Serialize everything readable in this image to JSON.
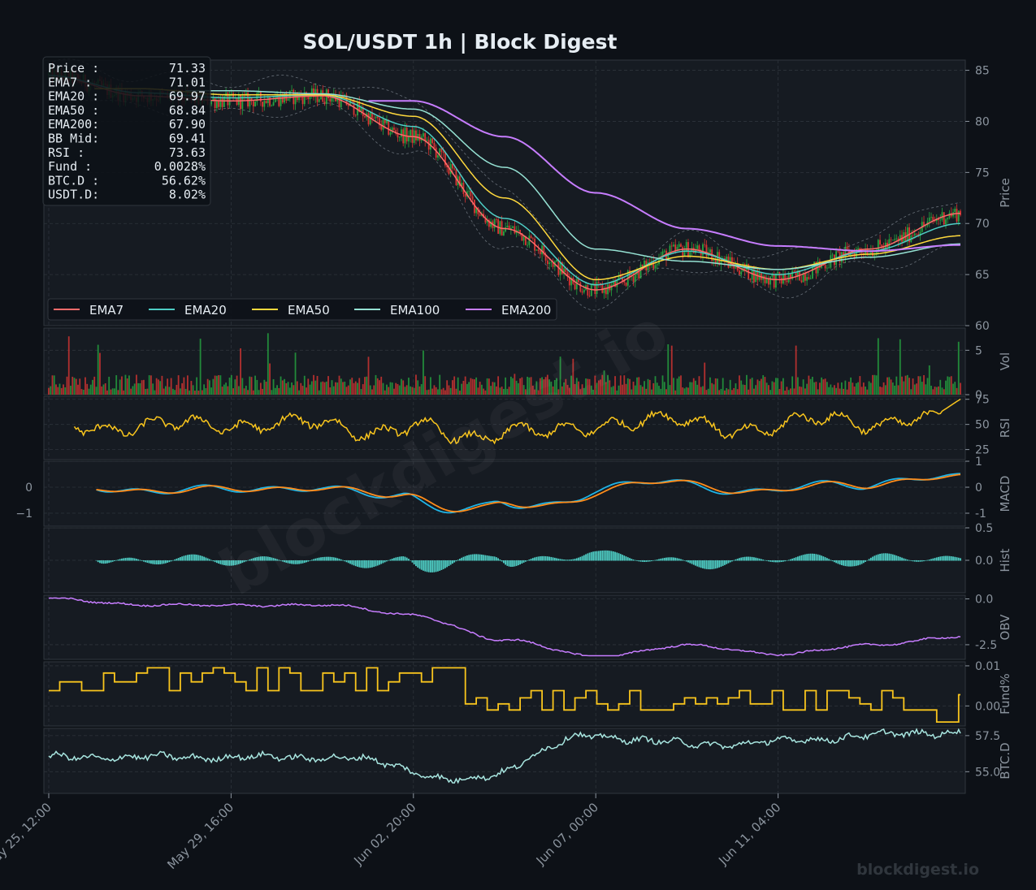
{
  "title": "SOL/USDT  1h  |  Block Digest",
  "watermark": "blockdigest.io",
  "footer_brand": "blockdigest.io",
  "colors": {
    "bg": "#0d1117",
    "panel": "#161b22",
    "grid": "#2d333b",
    "text": "#e6edf3",
    "muted": "#8b949e",
    "up": "#26a641",
    "down": "#da3633",
    "ema7": "#ff6b6b",
    "ema20": "#4ecdc4",
    "ema50": "#ffd93d",
    "ema100": "#95e1d3",
    "ema200": "#c77dff",
    "rsi": "#f9c51d",
    "macd": "#1fb4e6",
    "signal": "#ff8c1a",
    "hist": "#4ecdc4",
    "obv": "#c77dff",
    "fund": "#f9c51d",
    "btcd": "#a8e6e0"
  },
  "info_box": [
    {
      "label": "Price :",
      "value": "71.33"
    },
    {
      "label": "EMA7  :",
      "value": "71.01"
    },
    {
      "label": "EMA20 :",
      "value": "69.97"
    },
    {
      "label": "EMA50 :",
      "value": "68.84"
    },
    {
      "label": "EMA200:",
      "value": "67.90"
    },
    {
      "label": "BB Mid:",
      "value": "69.41"
    },
    {
      "label": "RSI   :",
      "value": "73.63"
    },
    {
      "label": "Fund  :",
      "value": "0.0028%"
    },
    {
      "label": "BTC.D :",
      "value": "56.62%"
    },
    {
      "label": "USDT.D:",
      "value": "8.02%"
    }
  ],
  "legend": [
    "EMA7",
    "EMA20",
    "EMA50",
    "EMA100",
    "EMA200"
  ],
  "x_axis": {
    "ticks": [
      "May 25, 12:00",
      "May 29, 16:00",
      "Jun 02, 20:00",
      "Jun 07, 00:00",
      "Jun 11, 04:00"
    ]
  },
  "chart_data": [
    {
      "type": "line",
      "panel": "price",
      "ylabel": "Price",
      "ylim": [
        60,
        86
      ],
      "yticks": [
        "60",
        "65",
        "70",
        "75",
        "80",
        "85"
      ],
      "x": [
        "May 25, 12:00",
        "May 27, 14:00",
        "May 29, 16:00",
        "May 31, 18:00",
        "Jun 02, 20:00",
        "Jun 04, 22:00",
        "Jun 07, 00:00",
        "Jun 09, 02:00",
        "Jun 11, 04:00",
        "Jun 13, 06:00",
        "Jun 15, 08:00"
      ],
      "series": [
        {
          "name": "EMA7",
          "values": [
            84.5,
            82.5,
            82.0,
            82.5,
            78.5,
            69.5,
            63.5,
            67.5,
            64.5,
            67.5,
            71.0
          ]
        },
        {
          "name": "EMA20",
          "values": [
            84.5,
            82.8,
            82.3,
            82.6,
            79.5,
            70.5,
            64.0,
            67.3,
            65.0,
            67.3,
            70.0
          ]
        },
        {
          "name": "EMA50",
          "values": [
            null,
            83.2,
            82.6,
            82.6,
            80.5,
            72.5,
            64.5,
            66.8,
            65.5,
            67.0,
            68.8
          ]
        },
        {
          "name": "EMA100",
          "values": [
            null,
            null,
            83.0,
            82.7,
            81.2,
            75.5,
            67.5,
            66.3,
            65.5,
            66.7,
            68.0
          ]
        },
        {
          "name": "EMA200",
          "values": [
            null,
            null,
            null,
            null,
            82.0,
            78.5,
            73.0,
            69.5,
            67.8,
            67.3,
            67.9
          ]
        }
      ]
    },
    {
      "type": "bar",
      "panel": "volume",
      "ylabel": "Vol",
      "scale_label": "1e6",
      "ylim": [
        0,
        7.5
      ],
      "yticks": [
        "0",
        "5"
      ],
      "typical_value": 1.5,
      "max_value": 7.0
    },
    {
      "type": "line",
      "panel": "rsi",
      "ylabel": "RSI",
      "ylim": [
        15,
        78
      ],
      "yticks": [
        "25",
        "50",
        "75"
      ],
      "last_value": 73.63
    },
    {
      "type": "line",
      "panel": "macd",
      "ylabel": "MACD",
      "ylim": [
        -1.5,
        1.0
      ],
      "yticks": [
        "-1",
        "0",
        "1"
      ],
      "series_names": [
        "MACD",
        "Signal"
      ]
    },
    {
      "type": "bar",
      "panel": "hist",
      "ylabel": "Hist",
      "ylim": [
        -0.5,
        0.5
      ],
      "yticks": [
        "0.0",
        "0.5"
      ]
    },
    {
      "type": "line",
      "panel": "obv",
      "ylabel": "OBV",
      "scale_label": "1e7",
      "ylim": [
        -3.3,
        0.2
      ],
      "yticks": [
        "-2.5",
        "0.0"
      ],
      "start": 0.0,
      "end": -2.4
    },
    {
      "type": "line",
      "panel": "funding",
      "ylabel": "Fund%",
      "ylim": [
        -0.005,
        0.011
      ],
      "yticks": [
        "0.00",
        "0.01"
      ]
    },
    {
      "type": "line",
      "panel": "btcd",
      "ylabel": "BTC.D",
      "ylim": [
        53.5,
        58.0
      ],
      "yticks": [
        "55.0",
        "57.5"
      ],
      "last_value": 56.62
    }
  ]
}
